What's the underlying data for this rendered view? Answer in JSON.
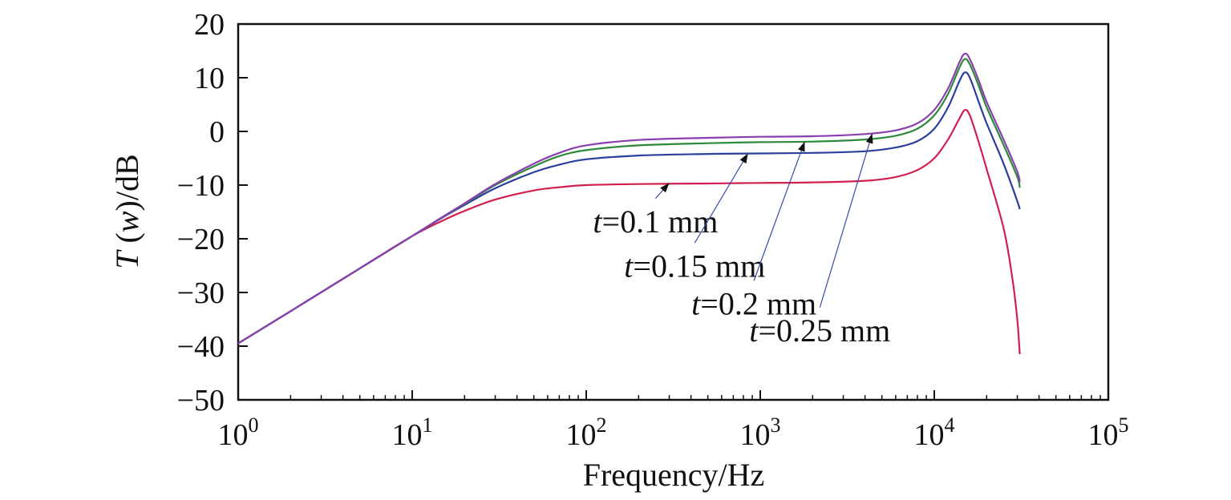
{
  "chart_data": {
    "type": "line",
    "title": "",
    "xlabel": "Frequency/Hz",
    "ylabel": {
      "italic": "T",
      "italic_arg": "w",
      "unit": "/dB"
    },
    "x_scale": "log",
    "xlim": [
      1,
      100000
    ],
    "ylim": [
      -50,
      20
    ],
    "x_ticks": [
      {
        "base": "10",
        "exp": "0",
        "value": 1
      },
      {
        "base": "10",
        "exp": "1",
        "value": 10
      },
      {
        "base": "10",
        "exp": "2",
        "value": 100
      },
      {
        "base": "10",
        "exp": "3",
        "value": 1000
      },
      {
        "base": "10",
        "exp": "4",
        "value": 10000
      },
      {
        "base": "10",
        "exp": "5",
        "value": 100000
      }
    ],
    "y_ticks": [
      "20",
      "10",
      "0",
      "−10",
      "−20",
      "−30",
      "−40",
      "−50"
    ],
    "grid": false,
    "legend": "none",
    "series": [
      {
        "label": "t=0.1 mm",
        "label_italic": "t",
        "label_rest": "=0.1 mm",
        "color": "#d1204f",
        "x": [
          1,
          2,
          5,
          10,
          15,
          20,
          30,
          50,
          70,
          100,
          200,
          500,
          1000,
          2000,
          4000,
          6000,
          8000,
          10000,
          12000,
          14000,
          15000,
          16000,
          18000,
          20000,
          25000,
          28000,
          30000,
          31000
        ],
        "y": [
          -39.5,
          -33.5,
          -25.5,
          -19.5,
          -16.6,
          -14.8,
          -12.7,
          -11.0,
          -10.4,
          -10.0,
          -9.8,
          -9.7,
          -9.6,
          -9.5,
          -9.2,
          -8.5,
          -7.2,
          -5.0,
          -1.5,
          2.5,
          4.0,
          3.0,
          -2.0,
          -7.0,
          -18.0,
          -27.0,
          -35.0,
          -41.5
        ]
      },
      {
        "label": "t=0.15 mm",
        "label_italic": "t",
        "label_rest": "=0.15 mm",
        "color": "#2a3f9e",
        "x": [
          1,
          2,
          5,
          10,
          15,
          20,
          30,
          50,
          70,
          100,
          200,
          500,
          1000,
          2000,
          4000,
          6000,
          8000,
          10000,
          12000,
          14000,
          15000,
          16000,
          18000,
          20000,
          25000,
          30000,
          31000
        ],
        "y": [
          -39.5,
          -33.5,
          -25.5,
          -19.5,
          -16.0,
          -13.7,
          -10.6,
          -7.6,
          -6.2,
          -5.2,
          -4.5,
          -4.2,
          -4.1,
          -4.0,
          -3.7,
          -3.0,
          -1.8,
          0.5,
          4.5,
          9.5,
          11.0,
          10.0,
          5.5,
          1.5,
          -6.0,
          -13.0,
          -14.5
        ]
      },
      {
        "label": "t=0.2 mm",
        "label_italic": "t",
        "label_rest": "=0.2 mm",
        "color": "#2e8a3a",
        "x": [
          1,
          2,
          5,
          10,
          15,
          20,
          30,
          50,
          70,
          100,
          200,
          500,
          1000,
          2000,
          4000,
          6000,
          8000,
          10000,
          12000,
          14000,
          15000,
          16000,
          18000,
          20000,
          25000,
          30000,
          31000
        ],
        "y": [
          -39.5,
          -33.5,
          -25.5,
          -19.5,
          -15.9,
          -13.5,
          -10.0,
          -6.5,
          -4.6,
          -3.5,
          -2.6,
          -2.2,
          -2.0,
          -1.9,
          -1.5,
          -0.8,
          0.5,
          3.0,
          7.0,
          12.0,
          13.5,
          12.5,
          8.5,
          4.5,
          -2.5,
          -8.5,
          -10.5
        ]
      },
      {
        "label": "t=0.25 mm",
        "label_italic": "t",
        "label_rest": "=0.25 mm",
        "color": "#8a3fb0",
        "x": [
          1,
          2,
          5,
          10,
          15,
          20,
          30,
          50,
          70,
          100,
          200,
          500,
          1000,
          2000,
          4000,
          6000,
          8000,
          10000,
          12000,
          14000,
          15000,
          16000,
          18000,
          20000,
          25000,
          30000,
          31000
        ],
        "y": [
          -39.5,
          -33.5,
          -25.5,
          -19.5,
          -15.9,
          -13.4,
          -9.8,
          -6.0,
          -4.0,
          -2.6,
          -1.6,
          -1.2,
          -1.0,
          -0.9,
          -0.5,
          0.2,
          1.5,
          4.0,
          8.0,
          13.0,
          14.5,
          13.5,
          9.5,
          5.5,
          -1.5,
          -7.5,
          -9.5
        ]
      }
    ],
    "annotations": [
      {
        "series": 0,
        "arrow_to": [
          300,
          -9.6
        ],
        "arrow_from": [
          250,
          -12.5
        ]
      },
      {
        "series": 1,
        "arrow_to": [
          850,
          -4.1
        ],
        "arrow_from": [
          420,
          -20.8
        ]
      },
      {
        "series": 2,
        "arrow_to": [
          1800,
          -1.9
        ],
        "arrow_from": [
          920,
          -27.8
        ]
      },
      {
        "series": 3,
        "arrow_to": [
          4400,
          -0.4
        ],
        "arrow_from": [
          2200,
          -32.8
        ]
      }
    ]
  }
}
